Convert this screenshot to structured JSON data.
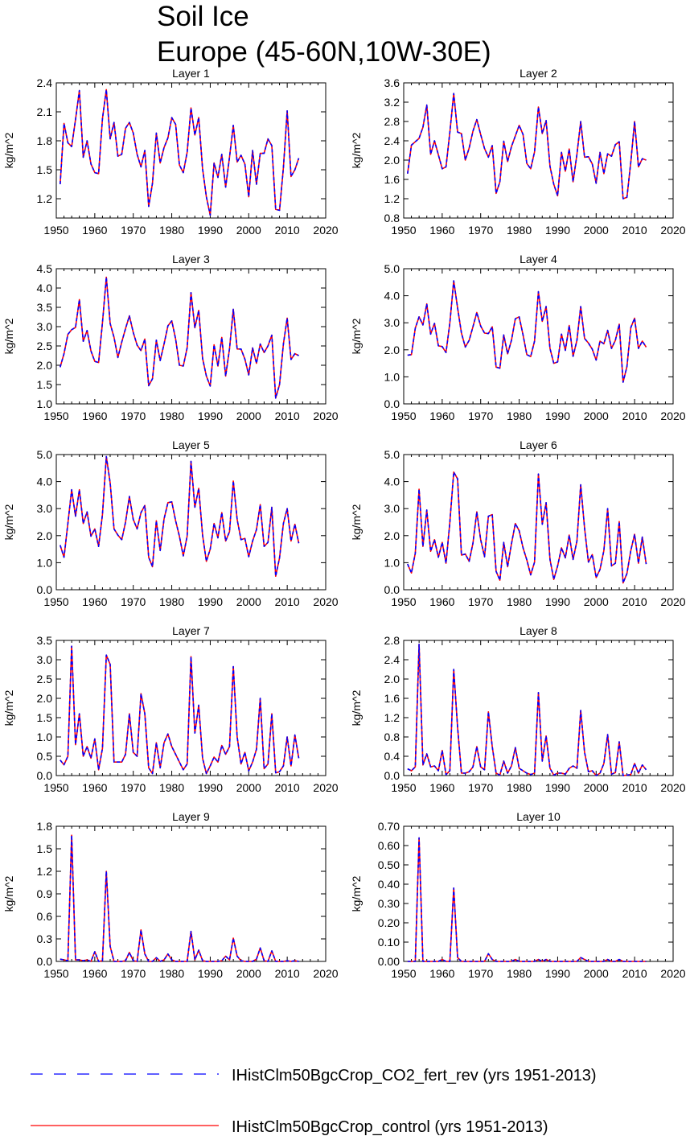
{
  "page": {
    "title_line1": "Soil Ice",
    "title_line2": "Europe (45-60N,10W-30E)"
  },
  "legend": {
    "position": "bottom",
    "entries": [
      {
        "label": "IHistClm50BgcCrop_CO2_fert_rev (yrs 1951-2013)",
        "color": "#0000ff",
        "style": "dashed"
      },
      {
        "label": "IHistClm50BgcCrop_control (yrs 1951-2013)",
        "color": "#ff0000",
        "style": "solid"
      }
    ]
  },
  "chart_data": [
    {
      "type": "line",
      "title": "Layer 1",
      "ylabel": "kg/m^2",
      "xlim": [
        1950,
        2020
      ],
      "ylim": [
        1.0,
        2.4
      ],
      "xticks": [
        1950,
        1960,
        1970,
        1980,
        1990,
        2000,
        2010,
        2020
      ],
      "yticks": [
        "1.2",
        "1.5",
        "1.8",
        "2.1",
        "2.4"
      ],
      "x_start": 1951,
      "series": [
        {
          "values": [
            1.35,
            1.98,
            1.78,
            1.74,
            2.02,
            2.32,
            1.63,
            1.8,
            1.56,
            1.47,
            1.46,
            2.03,
            2.33,
            1.82,
            1.99,
            1.64,
            1.66,
            1.93,
            1.99,
            1.88,
            1.66,
            1.53,
            1.7,
            1.12,
            1.36,
            1.88,
            1.57,
            1.73,
            1.83,
            2.04,
            1.97,
            1.55,
            1.47,
            1.68,
            2.14,
            1.86,
            2.04,
            1.51,
            1.22,
            1.03,
            1.57,
            1.42,
            1.66,
            1.32,
            1.63,
            1.96,
            1.58,
            1.65,
            1.56,
            1.22,
            1.7,
            1.35,
            1.67,
            1.67,
            1.82,
            1.75,
            1.09,
            1.08,
            1.52,
            2.11,
            1.43,
            1.5,
            1.62
          ]
        }
      ]
    },
    {
      "type": "line",
      "title": "Layer 2",
      "ylabel": "kg/m^2",
      "xlim": [
        1950,
        2020
      ],
      "ylim": [
        0.8,
        3.6
      ],
      "xticks": [
        1950,
        1960,
        1970,
        1980,
        1990,
        2000,
        2010,
        2020
      ],
      "yticks": [
        "0.8",
        "1.2",
        "1.6",
        "2.0",
        "2.4",
        "2.8",
        "3.2",
        "3.6"
      ],
      "x_start": 1951,
      "series": [
        {
          "values": [
            1.72,
            2.31,
            2.38,
            2.45,
            2.68,
            3.14,
            2.12,
            2.4,
            2.11,
            1.82,
            1.86,
            2.58,
            3.38,
            2.58,
            2.55,
            2.0,
            2.25,
            2.6,
            2.84,
            2.53,
            2.24,
            2.06,
            2.3,
            1.31,
            1.55,
            2.39,
            1.97,
            2.28,
            2.5,
            2.72,
            2.53,
            1.93,
            1.82,
            2.17,
            3.1,
            2.55,
            2.82,
            1.87,
            1.5,
            1.26,
            2.16,
            1.77,
            2.23,
            1.55,
            2.12,
            2.8,
            2.06,
            2.07,
            1.92,
            1.52,
            2.16,
            1.72,
            2.13,
            2.08,
            2.32,
            2.38,
            1.2,
            1.23,
            1.96,
            2.8,
            1.86,
            2.03,
            2.0
          ]
        }
      ]
    },
    {
      "type": "line",
      "title": "Layer 3",
      "ylabel": "kg/m^2",
      "xlim": [
        1950,
        2020
      ],
      "ylim": [
        1.0,
        4.5
      ],
      "xticks": [
        1950,
        1960,
        1970,
        1980,
        1990,
        2000,
        2010,
        2020
      ],
      "yticks": [
        "1.0",
        "1.5",
        "2.0",
        "2.5",
        "3.0",
        "3.5",
        "4.0",
        "4.5"
      ],
      "x_start": 1951,
      "series": [
        {
          "values": [
            1.95,
            2.3,
            2.8,
            2.92,
            2.98,
            3.7,
            2.62,
            2.9,
            2.37,
            2.1,
            2.07,
            3.1,
            4.28,
            3.08,
            2.72,
            2.2,
            2.6,
            2.95,
            3.28,
            2.85,
            2.52,
            2.38,
            2.68,
            1.47,
            1.65,
            2.65,
            2.12,
            2.55,
            3.02,
            3.15,
            2.68,
            2.0,
            1.98,
            2.45,
            3.88,
            2.97,
            3.42,
            2.18,
            1.72,
            1.46,
            2.53,
            1.98,
            2.72,
            1.72,
            2.43,
            3.45,
            2.42,
            2.42,
            2.16,
            1.75,
            2.45,
            2.05,
            2.55,
            2.33,
            2.5,
            2.78,
            1.15,
            1.5,
            2.55,
            3.22,
            2.15,
            2.3,
            2.25
          ]
        }
      ]
    },
    {
      "type": "line",
      "title": "Layer 4",
      "ylabel": "kg/m^2",
      "xlim": [
        1950,
        2020
      ],
      "ylim": [
        0.0,
        5.0
      ],
      "xticks": [
        1950,
        1960,
        1970,
        1980,
        1990,
        2000,
        2010,
        2020
      ],
      "yticks": [
        "0.0",
        "1.0",
        "2.0",
        "3.0",
        "4.0",
        "5.0"
      ],
      "x_start": 1951,
      "series": [
        {
          "values": [
            1.8,
            1.82,
            2.8,
            3.22,
            2.92,
            3.7,
            2.58,
            2.98,
            2.15,
            2.12,
            1.9,
            3.0,
            4.55,
            3.55,
            2.62,
            2.1,
            2.35,
            2.85,
            3.38,
            2.88,
            2.62,
            2.6,
            2.85,
            1.36,
            1.32,
            2.55,
            1.85,
            2.35,
            3.15,
            3.22,
            2.55,
            1.82,
            1.75,
            2.32,
            4.15,
            3.05,
            3.6,
            2.05,
            1.5,
            1.55,
            2.58,
            1.98,
            2.9,
            1.76,
            2.35,
            3.6,
            2.42,
            2.25,
            2.02,
            1.62,
            2.32,
            2.22,
            2.72,
            2.05,
            2.35,
            2.95,
            0.8,
            1.38,
            2.82,
            3.17,
            2.05,
            2.32,
            2.1
          ]
        }
      ]
    },
    {
      "type": "line",
      "title": "Layer 5",
      "ylabel": "kg/m^2",
      "xlim": [
        1950,
        2020
      ],
      "ylim": [
        0.0,
        5.0
      ],
      "xticks": [
        1950,
        1960,
        1970,
        1980,
        1990,
        2000,
        2010,
        2020
      ],
      "yticks": [
        "0.0",
        "1.0",
        "2.0",
        "3.0",
        "4.0",
        "5.0"
      ],
      "x_start": 1951,
      "series": [
        {
          "values": [
            1.65,
            1.2,
            2.45,
            3.7,
            2.72,
            3.7,
            2.45,
            2.88,
            1.98,
            2.25,
            1.6,
            2.78,
            4.93,
            3.95,
            2.25,
            2.02,
            1.85,
            2.5,
            3.45,
            2.6,
            2.25,
            2.85,
            3.12,
            1.2,
            0.85,
            2.55,
            1.45,
            2.62,
            3.22,
            3.25,
            2.55,
            1.98,
            1.25,
            1.98,
            4.75,
            3.05,
            3.75,
            2.02,
            1.05,
            1.5,
            2.45,
            1.92,
            2.85,
            1.8,
            2.15,
            4.02,
            2.6,
            1.85,
            1.9,
            1.22,
            1.8,
            2.22,
            3.15,
            1.6,
            1.75,
            3.05,
            0.5,
            1.18,
            2.45,
            3.0,
            1.8,
            2.42,
            1.72
          ]
        }
      ]
    },
    {
      "type": "line",
      "title": "Layer 6",
      "ylabel": "kg/m^2",
      "xlim": [
        1950,
        2020
      ],
      "ylim": [
        0.0,
        5.0
      ],
      "xticks": [
        1950,
        1960,
        1970,
        1980,
        1990,
        2000,
        2010,
        2020
      ],
      "yticks": [
        "0.0",
        "1.0",
        "2.0",
        "3.0",
        "4.0",
        "5.0"
      ],
      "x_start": 1951,
      "series": [
        {
          "values": [
            0.95,
            0.62,
            1.35,
            3.72,
            1.6,
            2.95,
            1.42,
            1.85,
            1.2,
            1.75,
            0.98,
            2.5,
            4.35,
            4.1,
            1.28,
            1.32,
            1.05,
            1.72,
            2.88,
            1.85,
            1.22,
            2.72,
            2.78,
            0.68,
            0.35,
            1.75,
            0.85,
            1.7,
            2.45,
            2.18,
            1.55,
            1.1,
            0.55,
            1.02,
            4.28,
            2.42,
            3.22,
            1.12,
            0.38,
            0.88,
            1.55,
            1.18,
            2.02,
            1.12,
            1.8,
            3.88,
            2.28,
            1.02,
            1.3,
            0.45,
            0.75,
            1.45,
            3.0,
            0.88,
            0.98,
            2.52,
            0.25,
            0.6,
            1.45,
            2.05,
            0.98,
            1.95,
            0.95
          ]
        }
      ]
    },
    {
      "type": "line",
      "title": "Layer 7",
      "ylabel": "kg/m^2",
      "xlim": [
        1950,
        2020
      ],
      "ylim": [
        0.0,
        3.5
      ],
      "xticks": [
        1950,
        1960,
        1970,
        1980,
        1990,
        2000,
        2010,
        2020
      ],
      "yticks": [
        "0.0",
        "0.5",
        "1.0",
        "1.5",
        "2.0",
        "2.5",
        "3.0",
        "3.5"
      ],
      "x_start": 1951,
      "series": [
        {
          "values": [
            0.4,
            0.28,
            0.5,
            3.35,
            0.8,
            1.6,
            0.5,
            0.75,
            0.45,
            0.95,
            0.15,
            0.7,
            3.12,
            2.88,
            0.35,
            0.35,
            0.35,
            0.55,
            1.6,
            0.6,
            0.5,
            2.12,
            1.6,
            0.2,
            0.05,
            0.85,
            0.2,
            0.85,
            1.08,
            0.75,
            0.55,
            0.35,
            0.15,
            0.3,
            3.08,
            1.1,
            1.82,
            0.45,
            0.05,
            0.25,
            0.48,
            0.35,
            0.78,
            0.55,
            0.75,
            2.82,
            1.0,
            0.3,
            0.6,
            0.12,
            0.35,
            0.68,
            2.0,
            0.18,
            0.3,
            1.6,
            0.07,
            0.1,
            0.25,
            1.0,
            0.25,
            1.05,
            0.45
          ]
        }
      ]
    },
    {
      "type": "line",
      "title": "Layer 8",
      "ylabel": "kg/m^2",
      "xlim": [
        1950,
        2020
      ],
      "ylim": [
        0.0,
        2.8
      ],
      "xticks": [
        1950,
        1960,
        1970,
        1980,
        1990,
        2000,
        2010,
        2020
      ],
      "yticks": [
        "0.0",
        "0.4",
        "0.8",
        "1.2",
        "1.6",
        "2.0",
        "2.4",
        "2.8"
      ],
      "x_start": 1951,
      "series": [
        {
          "values": [
            0.14,
            0.1,
            0.18,
            2.72,
            0.22,
            0.45,
            0.18,
            0.2,
            0.1,
            0.52,
            0.02,
            0.1,
            2.2,
            1.0,
            0.05,
            0.05,
            0.08,
            0.18,
            0.6,
            0.18,
            0.12,
            1.32,
            0.6,
            0.05,
            0.01,
            0.3,
            0.05,
            0.2,
            0.58,
            0.15,
            0.1,
            0.05,
            0.02,
            0.05,
            1.72,
            0.3,
            0.82,
            0.15,
            0.01,
            0.05,
            0.05,
            0.03,
            0.15,
            0.2,
            0.15,
            1.35,
            0.48,
            0.08,
            0.1,
            0.0,
            0.05,
            0.25,
            0.85,
            0.03,
            0.06,
            0.7,
            0.0,
            0.01,
            0.02,
            0.25,
            0.05,
            0.22,
            0.12
          ]
        }
      ]
    },
    {
      "type": "line",
      "title": "Layer 9",
      "ylabel": "kg/m^2",
      "xlim": [
        1950,
        2020
      ],
      "ylim": [
        0.0,
        1.8
      ],
      "xticks": [
        1950,
        1960,
        1970,
        1980,
        1990,
        2000,
        2010,
        2020
      ],
      "yticks": [
        "0.0",
        "0.3",
        "0.6",
        "0.9",
        "1.2",
        "1.5",
        "1.8"
      ],
      "x_start": 1951,
      "series": [
        {
          "values": [
            0.03,
            0.02,
            0.01,
            1.68,
            0.02,
            0.02,
            0.01,
            0.02,
            0.0,
            0.13,
            0.0,
            0.01,
            1.2,
            0.2,
            0.0,
            0.0,
            0.0,
            0.01,
            0.12,
            0.01,
            0.0,
            0.42,
            0.1,
            0.0,
            0.0,
            0.05,
            0.0,
            0.02,
            0.1,
            0.02,
            0.0,
            0.0,
            0.0,
            0.0,
            0.4,
            0.02,
            0.15,
            0.01,
            0.0,
            0.0,
            0.0,
            0.0,
            0.01,
            0.07,
            0.02,
            0.31,
            0.07,
            0.01,
            0.0,
            0.0,
            0.0,
            0.03,
            0.18,
            0.01,
            0.0,
            0.14,
            0.0,
            0.0,
            0.0,
            0.01,
            0.0,
            0.01,
            0.0
          ]
        }
      ]
    },
    {
      "type": "line",
      "title": "Layer 10",
      "ylabel": "kg/m^2",
      "xlim": [
        1950,
        2020
      ],
      "ylim": [
        0.0,
        0.7
      ],
      "xticks": [
        1950,
        1960,
        1970,
        1980,
        1990,
        2000,
        2010,
        2020
      ],
      "yticks": [
        "0.00",
        "0.10",
        "0.20",
        "0.30",
        "0.40",
        "0.50",
        "0.60",
        "0.70"
      ],
      "x_start": 1951,
      "series": [
        {
          "values": [
            0.0,
            0.0,
            0.0,
            0.64,
            0.0,
            0.0,
            0.0,
            0.0,
            0.0,
            0.01,
            0.0,
            0.0,
            0.38,
            0.02,
            0.0,
            0.0,
            0.0,
            0.0,
            0.0,
            0.0,
            0.0,
            0.04,
            0.01,
            0.0,
            0.0,
            0.0,
            0.0,
            0.0,
            0.01,
            0.0,
            0.0,
            0.0,
            0.0,
            0.0,
            0.01,
            0.0,
            0.01,
            0.0,
            0.0,
            0.0,
            0.0,
            0.0,
            0.0,
            0.0,
            0.0,
            0.02,
            0.01,
            0.0,
            0.0,
            0.0,
            0.0,
            0.0,
            0.01,
            0.0,
            0.0,
            0.01,
            0.0,
            0.0,
            0.0,
            0.0,
            0.0,
            0.0,
            0.0
          ]
        }
      ]
    }
  ]
}
